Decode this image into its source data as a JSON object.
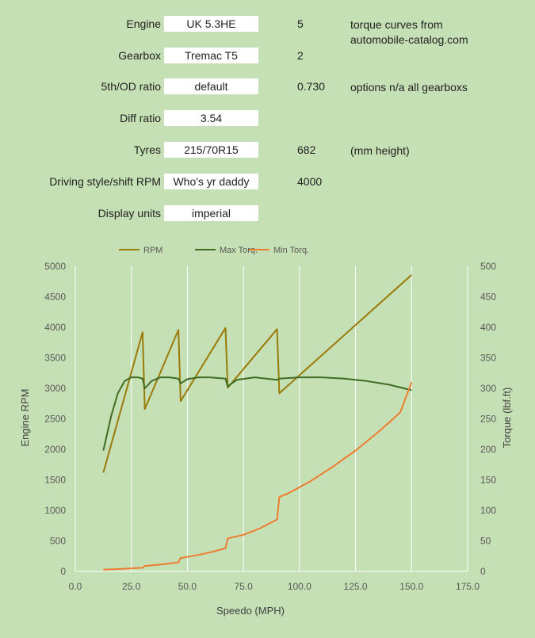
{
  "settings": {
    "engine": {
      "label": "Engine",
      "value": "UK 5.3HE",
      "aux": "5",
      "note_line1": "torque curves from",
      "note_line2": "automobile-catalog.com"
    },
    "gearbox": {
      "label": "Gearbox",
      "value": "Tremac T5",
      "aux": "2"
    },
    "od_ratio": {
      "label": "5th/OD ratio",
      "value": "default",
      "aux": "0.730",
      "note": "options n/a all gearboxs"
    },
    "diff_ratio": {
      "label": "Diff ratio",
      "value": "3.54"
    },
    "tyres": {
      "label": "Tyres",
      "value": "215/70R15",
      "aux": "682",
      "note": "(mm height)"
    },
    "driving_style": {
      "label": "Driving style/shift RPM",
      "value": "Who's yr daddy",
      "aux": "4000"
    },
    "display_units": {
      "label": "Display units",
      "value": "imperial"
    }
  },
  "colors": {
    "rpm": "#9a7b0a",
    "max_torque": "#3f6b22",
    "min_torque": "#ed7d31",
    "background": "#c5e0b4",
    "grid": "#ffffff"
  },
  "chart_data": {
    "type": "line",
    "xlabel": "Speedo (MPH)",
    "ylabel": "Engine RPM",
    "y2label": "Torque (lbf.ft)",
    "xlim": [
      0,
      175
    ],
    "ylim": [
      0,
      5000
    ],
    "y2lim": [
      0,
      500
    ],
    "x_ticks": [
      "0.0",
      "25.0",
      "50.0",
      "75.0",
      "100.0",
      "125.0",
      "150.0",
      "175.0"
    ],
    "y_ticks": [
      "0",
      "500",
      "1000",
      "1500",
      "2000",
      "2500",
      "3000",
      "3500",
      "4000",
      "4500",
      "5000"
    ],
    "y2_ticks": [
      "0",
      "50",
      "100",
      "150",
      "200",
      "250",
      "300",
      "350",
      "400",
      "450",
      "500"
    ],
    "legend_position": "top",
    "grid": "vertical",
    "series": [
      {
        "name": "RPM",
        "axis": "left",
        "color": "#9a7b0a",
        "points": [
          [
            12.5,
            1620
          ],
          [
            30,
            3920
          ],
          [
            31,
            2660
          ],
          [
            46,
            3960
          ],
          [
            47,
            2790
          ],
          [
            67,
            3990
          ],
          [
            68,
            3010
          ],
          [
            90,
            3970
          ],
          [
            91,
            2920
          ],
          [
            150,
            4860
          ]
        ]
      },
      {
        "name": "Max Torq.",
        "axis": "right",
        "color": "#3f6b22",
        "points": [
          [
            12.5,
            198
          ],
          [
            16,
            255
          ],
          [
            19,
            292
          ],
          [
            22,
            312
          ],
          [
            25,
            318
          ],
          [
            28,
            318
          ],
          [
            30,
            316
          ],
          [
            31,
            300
          ],
          [
            34,
            312
          ],
          [
            38,
            318
          ],
          [
            42,
            318
          ],
          [
            46,
            316
          ],
          [
            47,
            308
          ],
          [
            50,
            315
          ],
          [
            55,
            318
          ],
          [
            60,
            318
          ],
          [
            67,
            316
          ],
          [
            68,
            303
          ],
          [
            72,
            314
          ],
          [
            80,
            318
          ],
          [
            90,
            314
          ],
          [
            91,
            316
          ],
          [
            100,
            318
          ],
          [
            110,
            318
          ],
          [
            120,
            316
          ],
          [
            130,
            312
          ],
          [
            140,
            306
          ],
          [
            150,
            297
          ]
        ]
      },
      {
        "name": "Min Torq.",
        "axis": "right",
        "color": "#ed7d31",
        "points": [
          [
            12.5,
            3
          ],
          [
            20,
            4
          ],
          [
            30,
            6
          ],
          [
            31,
            9
          ],
          [
            40,
            12
          ],
          [
            46,
            15
          ],
          [
            47,
            22
          ],
          [
            55,
            27
          ],
          [
            62,
            33
          ],
          [
            67,
            38
          ],
          [
            68,
            54
          ],
          [
            75,
            60
          ],
          [
            82,
            70
          ],
          [
            90,
            85
          ],
          [
            91,
            122
          ],
          [
            95,
            128
          ],
          [
            100,
            138
          ],
          [
            105,
            148
          ],
          [
            110,
            160
          ],
          [
            115,
            172
          ],
          [
            120,
            185
          ],
          [
            125,
            198
          ],
          [
            130,
            213
          ],
          [
            135,
            228
          ],
          [
            140,
            244
          ],
          [
            145,
            261
          ],
          [
            150,
            310
          ]
        ]
      }
    ]
  }
}
